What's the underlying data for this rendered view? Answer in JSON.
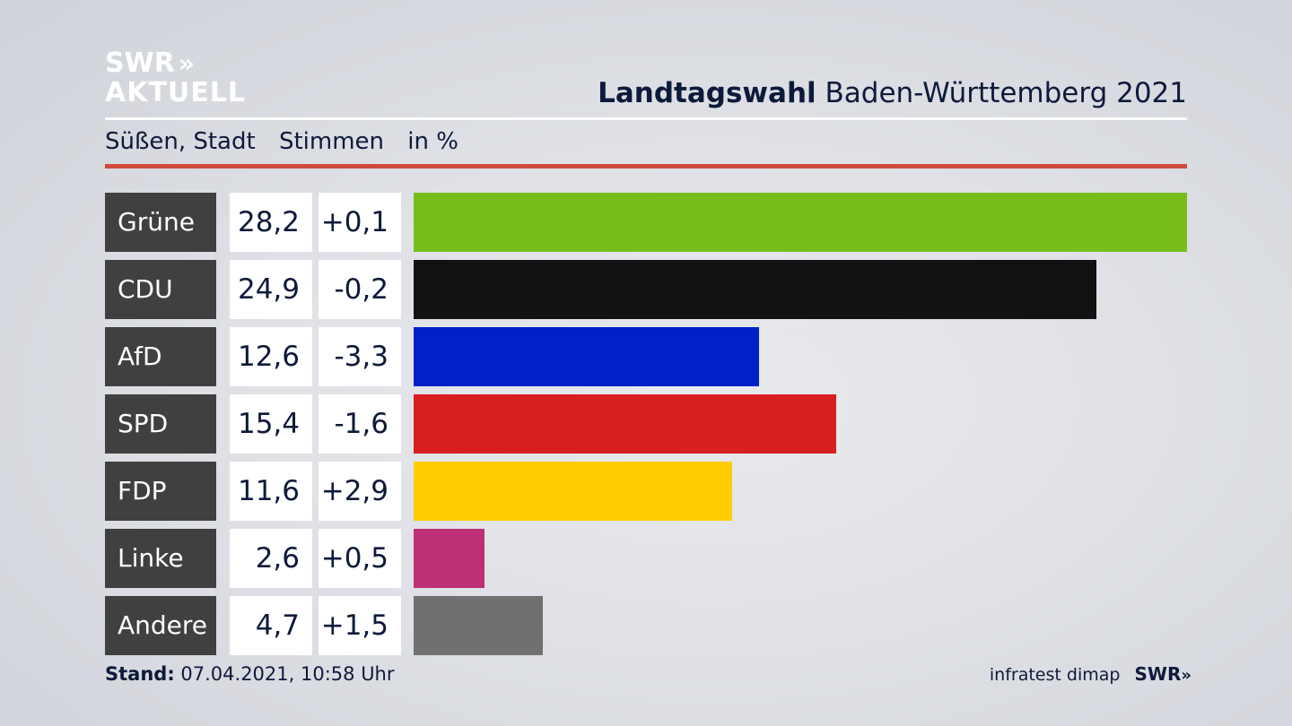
{
  "logo": {
    "line1": "SWR",
    "chevrons": "»",
    "line2": "AKTUELL"
  },
  "header": {
    "title_bold": "Landtagswahl",
    "title_rest": "Baden-Württemberg 2021"
  },
  "subheader": {
    "place": "Süßen, Stadt",
    "measure": "Stimmen",
    "unit": "in %"
  },
  "colors": {
    "rule_red": "#cf4b3b",
    "party_label_bg": "#404040"
  },
  "chart_data": {
    "type": "bar",
    "orientation": "horizontal",
    "categories": [
      "Grüne",
      "CDU",
      "AfD",
      "SPD",
      "FDP",
      "Linke",
      "Andere"
    ],
    "values": [
      28.2,
      24.9,
      12.6,
      15.4,
      11.6,
      2.6,
      4.7
    ],
    "values_text": [
      "28,2",
      "24,9",
      "12,6",
      "15,4",
      "11,6",
      "2,6",
      "4,7"
    ],
    "diff_text": [
      "+0,1",
      "-0,2",
      "-3,3",
      "-1,6",
      "+2,9",
      "+0,5",
      "+1,5"
    ],
    "colors": [
      "#77be1c",
      "#121212",
      "#0021c8",
      "#d71f1f",
      "#ffcc00",
      "#be3075",
      "#707070"
    ],
    "xlim": [
      0,
      28.2
    ]
  },
  "footer": {
    "stand_label": "Stand:",
    "stand_value": "07.04.2021, 10:58 Uhr",
    "source": "infratest dimap",
    "brand": "SWR",
    "brand_chevrons": "»"
  }
}
